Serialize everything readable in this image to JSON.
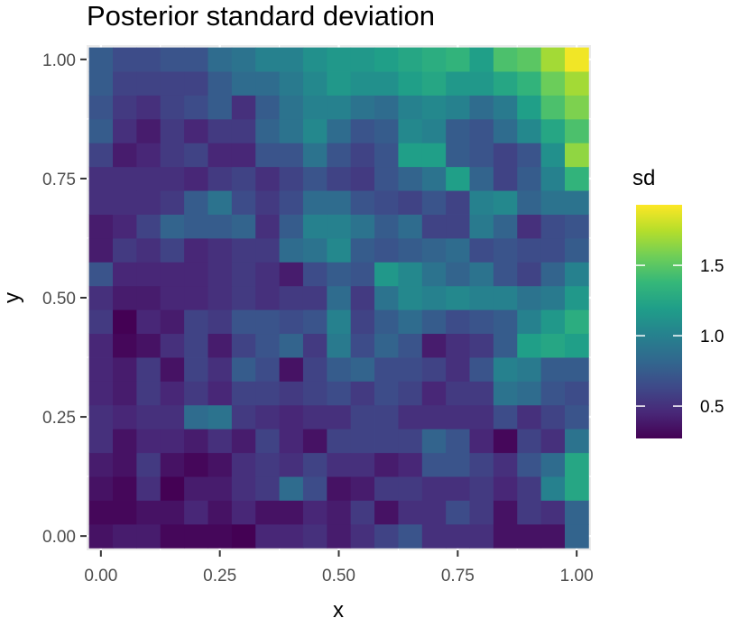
{
  "chart_data": {
    "type": "heatmap",
    "title": "Posterior standard deviation",
    "xlabel": "x",
    "ylabel": "y",
    "xlim": [
      -0.03,
      1.03
    ],
    "ylim": [
      -0.03,
      1.03
    ],
    "x_ticks": [
      0.0,
      0.25,
      0.5,
      0.75,
      1.0
    ],
    "y_ticks": [
      0.0,
      0.25,
      0.5,
      0.75,
      1.0
    ],
    "x_tick_labels": [
      "0.00",
      "0.25",
      "0.50",
      "0.75",
      "1.00"
    ],
    "y_tick_labels": [
      "0.00",
      "0.25",
      "0.50",
      "0.75",
      "1.00"
    ],
    "grid_x": [
      0.0,
      0.05,
      0.1,
      0.15,
      0.2,
      0.25,
      0.3,
      0.35,
      0.4,
      0.45,
      0.5,
      0.55,
      0.6,
      0.65,
      0.7,
      0.75,
      0.8,
      0.85,
      0.9,
      0.95,
      1.0
    ],
    "grid_y": [
      0.0,
      0.05,
      0.1,
      0.15,
      0.2,
      0.25,
      0.3,
      0.35,
      0.4,
      0.45,
      0.5,
      0.55,
      0.6,
      0.65,
      0.7,
      0.75,
      0.8,
      0.85,
      0.9,
      0.95,
      1.0
    ],
    "values_note_rows_bottom_to_top": true,
    "values": [
      [
        0.35,
        0.4,
        0.4,
        0.3,
        0.3,
        0.3,
        0.25,
        0.45,
        0.45,
        0.5,
        0.4,
        0.5,
        0.6,
        0.7,
        0.5,
        0.5,
        0.5,
        0.35,
        0.35,
        0.35,
        0.8
      ],
      [
        0.3,
        0.3,
        0.35,
        0.35,
        0.45,
        0.35,
        0.45,
        0.35,
        0.35,
        0.45,
        0.4,
        0.55,
        0.35,
        0.5,
        0.5,
        0.65,
        0.55,
        0.35,
        0.55,
        0.5,
        0.8
      ],
      [
        0.35,
        0.3,
        0.5,
        0.25,
        0.4,
        0.4,
        0.5,
        0.55,
        0.85,
        0.65,
        0.35,
        0.4,
        0.55,
        0.55,
        0.5,
        0.5,
        0.55,
        0.45,
        0.55,
        1.0,
        1.25
      ],
      [
        0.4,
        0.35,
        0.55,
        0.35,
        0.3,
        0.35,
        0.5,
        0.55,
        0.5,
        0.6,
        0.5,
        0.5,
        0.4,
        0.45,
        0.7,
        0.7,
        0.6,
        0.5,
        0.7,
        0.85,
        1.25
      ],
      [
        0.5,
        0.35,
        0.45,
        0.45,
        0.4,
        0.5,
        0.4,
        0.6,
        0.45,
        0.35,
        0.6,
        0.6,
        0.6,
        0.6,
        0.8,
        0.7,
        0.45,
        0.3,
        0.6,
        0.5,
        0.9
      ],
      [
        0.5,
        0.45,
        0.5,
        0.5,
        0.85,
        0.9,
        0.55,
        0.5,
        0.45,
        0.5,
        0.5,
        0.6,
        0.6,
        0.5,
        0.5,
        0.5,
        0.5,
        0.65,
        0.5,
        0.6,
        0.7
      ],
      [
        0.45,
        0.4,
        0.55,
        0.45,
        0.55,
        0.45,
        0.6,
        0.6,
        0.55,
        0.6,
        0.65,
        0.55,
        0.65,
        0.6,
        0.45,
        0.55,
        0.55,
        0.9,
        0.85,
        0.7,
        0.65
      ],
      [
        0.45,
        0.4,
        0.55,
        0.35,
        0.6,
        0.5,
        0.75,
        0.65,
        0.35,
        0.6,
        0.75,
        0.8,
        0.65,
        0.65,
        0.6,
        0.5,
        0.7,
        1.0,
        0.95,
        0.75,
        0.75
      ],
      [
        0.45,
        0.3,
        0.35,
        0.5,
        0.6,
        0.4,
        0.6,
        0.7,
        0.8,
        0.55,
        0.95,
        0.65,
        0.8,
        0.7,
        0.4,
        0.5,
        0.55,
        0.75,
        1.2,
        1.25,
        1.2
      ],
      [
        0.55,
        0.25,
        0.45,
        0.4,
        0.6,
        0.55,
        0.7,
        0.7,
        0.65,
        0.7,
        1.0,
        0.6,
        0.75,
        0.85,
        0.75,
        0.65,
        0.7,
        0.75,
        1.0,
        1.15,
        1.3
      ],
      [
        0.5,
        0.4,
        0.4,
        0.45,
        0.45,
        0.5,
        0.55,
        0.5,
        0.55,
        0.55,
        0.85,
        0.55,
        0.9,
        1.05,
        1.0,
        1.05,
        1.0,
        1.0,
        0.9,
        0.95,
        1.15
      ],
      [
        0.7,
        0.45,
        0.45,
        0.45,
        0.45,
        0.5,
        0.55,
        0.5,
        0.4,
        0.65,
        0.75,
        0.7,
        1.15,
        1.05,
        0.9,
        0.8,
        0.9,
        0.7,
        0.6,
        0.8,
        1.0
      ],
      [
        0.4,
        0.55,
        0.5,
        0.6,
        0.45,
        0.5,
        0.55,
        0.55,
        0.85,
        0.9,
        1.05,
        0.75,
        0.7,
        0.75,
        0.8,
        0.85,
        0.65,
        0.7,
        0.65,
        0.65,
        0.75
      ],
      [
        0.4,
        0.45,
        0.6,
        0.8,
        0.75,
        0.75,
        0.8,
        0.5,
        0.75,
        1.0,
        1.0,
        0.9,
        0.75,
        0.85,
        0.6,
        0.6,
        0.95,
        0.8,
        0.5,
        0.65,
        0.7
      ],
      [
        0.5,
        0.5,
        0.5,
        0.55,
        0.75,
        0.9,
        0.65,
        0.55,
        0.65,
        0.85,
        0.85,
        0.7,
        0.65,
        0.6,
        0.7,
        0.6,
        1.0,
        1.05,
        0.8,
        0.9,
        0.9
      ],
      [
        0.5,
        0.5,
        0.5,
        0.5,
        0.45,
        0.55,
        0.6,
        0.5,
        0.6,
        0.7,
        0.6,
        0.55,
        0.7,
        0.8,
        0.9,
        1.2,
        0.8,
        0.6,
        0.75,
        1.0,
        1.35
      ],
      [
        0.6,
        0.4,
        0.45,
        0.55,
        0.6,
        0.45,
        0.45,
        0.7,
        0.7,
        0.9,
        0.7,
        0.6,
        0.7,
        1.2,
        1.2,
        0.75,
        0.7,
        0.6,
        0.7,
        1.1,
        1.65
      ],
      [
        0.75,
        0.5,
        0.4,
        0.55,
        0.45,
        0.55,
        0.55,
        0.8,
        0.9,
        1.05,
        0.85,
        0.7,
        0.75,
        1.05,
        1.0,
        0.75,
        0.7,
        0.85,
        1.05,
        1.25,
        1.45
      ],
      [
        0.7,
        0.55,
        0.5,
        0.6,
        0.65,
        0.75,
        0.5,
        0.75,
        0.9,
        1.0,
        1.0,
        0.9,
        0.85,
        1.0,
        1.05,
        1.0,
        0.85,
        0.95,
        1.2,
        1.45,
        1.6
      ],
      [
        0.75,
        0.6,
        0.6,
        0.6,
        0.6,
        0.75,
        0.85,
        0.85,
        0.95,
        1.05,
        1.15,
        1.1,
        1.1,
        1.2,
        1.25,
        1.15,
        1.15,
        1.25,
        1.35,
        1.55,
        1.7
      ],
      [
        0.75,
        0.65,
        0.65,
        0.7,
        0.7,
        0.85,
        0.9,
        1.0,
        1.0,
        1.1,
        1.15,
        1.15,
        1.2,
        1.25,
        1.3,
        1.35,
        1.2,
        1.45,
        1.5,
        1.7,
        1.9
      ]
    ],
    "colorbar": {
      "title": "sd",
      "min": 0.27,
      "max": 1.93,
      "ticks": [
        0.5,
        1.0,
        1.5
      ],
      "tick_labels": [
        "0.5",
        "1.0",
        "1.5"
      ],
      "palette": "viridis"
    },
    "panel_background": "#ebebeb",
    "grid_color": "#ffffff",
    "grid": true,
    "legend_position": "right"
  }
}
